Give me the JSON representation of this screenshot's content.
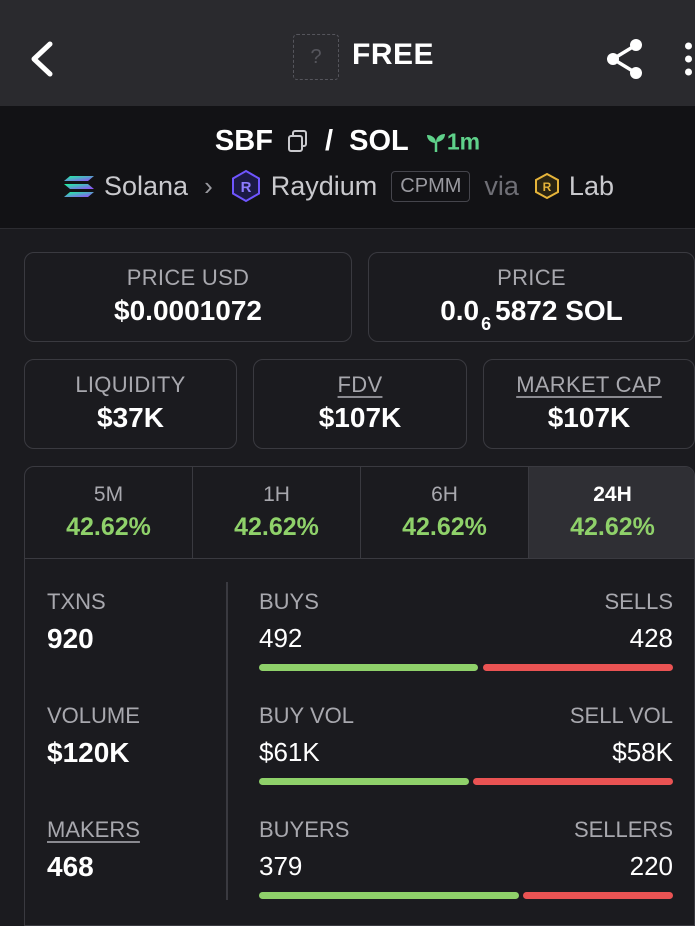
{
  "header": {
    "title": "FREE",
    "logo_placeholder": "?"
  },
  "pair": {
    "base": "SBF",
    "separator": "/",
    "quote": "SOL",
    "age": "1m",
    "chain": "Solana",
    "dex": "Raydium",
    "pool_type": "CPMM",
    "via": "via",
    "launchpad": "Lab"
  },
  "price_usd": {
    "label": "PRICE USD",
    "value": "$0.0001072"
  },
  "price_native": {
    "label": "PRICE",
    "prefix": "0.0",
    "zeros": "6",
    "suffix": "5872 SOL"
  },
  "liquidity": {
    "label": "LIQUIDITY",
    "value": "$37K"
  },
  "fdv": {
    "label": "FDV",
    "value": "$107K"
  },
  "market_cap": {
    "label": "MARKET CAP",
    "value": "$107K"
  },
  "tabs": [
    {
      "label": "5M",
      "value": "42.62%"
    },
    {
      "label": "1H",
      "value": "42.62%"
    },
    {
      "label": "6H",
      "value": "42.62%"
    },
    {
      "label": "24H",
      "value": "42.62%"
    }
  ],
  "active_tab": "24H",
  "txns": {
    "label": "TXNS",
    "value": "920"
  },
  "volume": {
    "label": "VOLUME",
    "value": "$120K"
  },
  "makers": {
    "label": "MAKERS",
    "value": "468"
  },
  "buys_sells": {
    "left_label": "BUYS",
    "left_value": "492",
    "right_label": "SELLS",
    "right_value": "428",
    "buy_fraction": 0.535
  },
  "vol_split": {
    "left_label": "BUY VOL",
    "left_value": "$61K",
    "right_label": "SELL VOL",
    "right_value": "$58K",
    "buy_fraction": 0.513
  },
  "buyers_sellers": {
    "left_label": "BUYERS",
    "left_value": "379",
    "right_label": "SELLERS",
    "right_value": "220",
    "buy_fraction": 0.633
  },
  "colors": {
    "positive": "#8fd16a",
    "negative": "#ea5353",
    "accent_age": "#5fd18a"
  }
}
